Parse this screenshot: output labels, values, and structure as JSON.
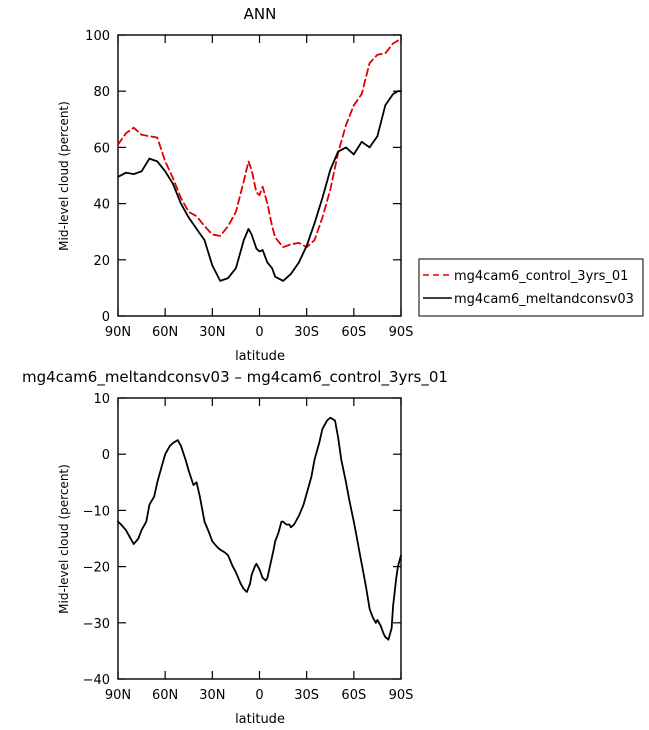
{
  "chart_data": [
    {
      "type": "line",
      "title": "ANN",
      "xlabel": "latitude",
      "ylabel": "Mid-level cloud (percent)",
      "xlim": [
        90,
        -90
      ],
      "ylim": [
        0,
        100
      ],
      "x_ticks": [
        90,
        60,
        30,
        0,
        -30,
        -60,
        -90
      ],
      "x_tick_labels": [
        "90N",
        "60N",
        "30N",
        "0",
        "30S",
        "60S",
        "90S"
      ],
      "y_ticks": [
        0,
        20,
        40,
        60,
        80,
        100
      ],
      "y_tick_labels": [
        "0",
        "20",
        "40",
        "60",
        "80",
        "100"
      ],
      "legend_position": "right",
      "series": [
        {
          "name": "mg4cam6_control_3yrs_01",
          "color": "#e00000",
          "dash": "dashed",
          "x": [
            90,
            85,
            80,
            75,
            70,
            65,
            60,
            55,
            50,
            45,
            40,
            35,
            30,
            25,
            20,
            15,
            10,
            7,
            5,
            2,
            0,
            -2,
            -5,
            -8,
            -10,
            -15,
            -20,
            -25,
            -30,
            -35,
            -40,
            -45,
            -50,
            -55,
            -60,
            -65,
            -70,
            -75,
            -80,
            -85,
            -88,
            -90
          ],
          "values": [
            61,
            65,
            67,
            64.5,
            64,
            63.5,
            55,
            49,
            42,
            37,
            35.5,
            32,
            29,
            28.5,
            32,
            37,
            48,
            55,
            52,
            44,
            43,
            46,
            40,
            32,
            28,
            24.5,
            25.5,
            26,
            24.5,
            27,
            35,
            45,
            58,
            68,
            75,
            79,
            90,
            93,
            93.5,
            97,
            98,
            99
          ]
        },
        {
          "name": "mg4cam6_meltandconsv03",
          "color": "#000000",
          "dash": "solid",
          "x": [
            90,
            85,
            80,
            75,
            70,
            65,
            60,
            55,
            50,
            45,
            40,
            35,
            30,
            25,
            20,
            15,
            10,
            7,
            5,
            2,
            0,
            -2,
            -5,
            -8,
            -10,
            -15,
            -20,
            -25,
            -30,
            -35,
            -40,
            -45,
            -50,
            -55,
            -60,
            -65,
            -70,
            -75,
            -80,
            -85,
            -88,
            -90
          ],
          "values": [
            49.5,
            51,
            50.5,
            51.5,
            56,
            55,
            51.5,
            47,
            40,
            35,
            31,
            27,
            18,
            12.5,
            13.5,
            17,
            27,
            31,
            29,
            24,
            23,
            23.5,
            19,
            17,
            14,
            12.5,
            15,
            19,
            25,
            33,
            42,
            52,
            58.5,
            60,
            57.5,
            62,
            60,
            64,
            75,
            79,
            80,
            80
          ]
        }
      ]
    },
    {
      "type": "line",
      "title": "mg4cam6_meltandconsv03 – mg4cam6_control_3yrs_01",
      "xlabel": "latitude",
      "ylabel": "Mid-level cloud (percent)",
      "xlim": [
        90,
        -90
      ],
      "ylim": [
        -40,
        10
      ],
      "x_ticks": [
        90,
        60,
        30,
        0,
        -30,
        -60,
        -90
      ],
      "x_tick_labels": [
        "90N",
        "60N",
        "30N",
        "0",
        "30S",
        "60S",
        "90S"
      ],
      "y_ticks": [
        -40,
        -30,
        -20,
        -10,
        0,
        10
      ],
      "y_tick_labels": [
        "−40",
        "−30",
        "−20",
        "−10",
        "0",
        "10"
      ],
      "series": [
        {
          "color": "#000000",
          "dash": "solid",
          "x": [
            90,
            88,
            85,
            82,
            80,
            77,
            75,
            72,
            70,
            67,
            65,
            62,
            60,
            57,
            55,
            52,
            50,
            47,
            45,
            42,
            40,
            38,
            35,
            32,
            30,
            27,
            25,
            22,
            20,
            17,
            15,
            12,
            10,
            8,
            6,
            5,
            3,
            2,
            0,
            -2,
            -4,
            -5,
            -7,
            -9,
            -10,
            -12,
            -14,
            -15,
            -17,
            -19,
            -20,
            -22,
            -25,
            -28,
            -30,
            -33,
            -35,
            -38,
            -40,
            -43,
            -45,
            -48,
            -50,
            -52,
            -55,
            -57,
            -60,
            -62,
            -64,
            -66,
            -68,
            -70,
            -72,
            -74,
            -75,
            -77,
            -79,
            -80,
            -82,
            -84,
            -85,
            -87,
            -88,
            -89,
            -90
          ],
          "values": [
            -12,
            -12.5,
            -13.5,
            -15,
            -16,
            -15,
            -13.5,
            -12,
            -9,
            -7.5,
            -5,
            -2,
            0,
            1.5,
            2,
            2.5,
            1.5,
            -1,
            -3,
            -5.5,
            -5,
            -7.5,
            -12,
            -14,
            -15.5,
            -16.5,
            -17,
            -17.5,
            -18,
            -20,
            -21,
            -23,
            -24,
            -24.5,
            -23,
            -21.5,
            -20,
            -19.5,
            -20.5,
            -22,
            -22.5,
            -22,
            -19.5,
            -17,
            -15.5,
            -14,
            -12,
            -12,
            -12.5,
            -12.5,
            -13,
            -12.5,
            -11,
            -9,
            -7,
            -4,
            -1,
            2,
            4.5,
            6,
            6.5,
            6,
            3,
            -1,
            -5,
            -8,
            -12,
            -15,
            -18,
            -21,
            -24,
            -27.5,
            -29,
            -30,
            -29.5,
            -30.5,
            -32,
            -32.5,
            -33,
            -31,
            -27,
            -22,
            -20,
            -19,
            -18
          ]
        }
      ]
    }
  ]
}
